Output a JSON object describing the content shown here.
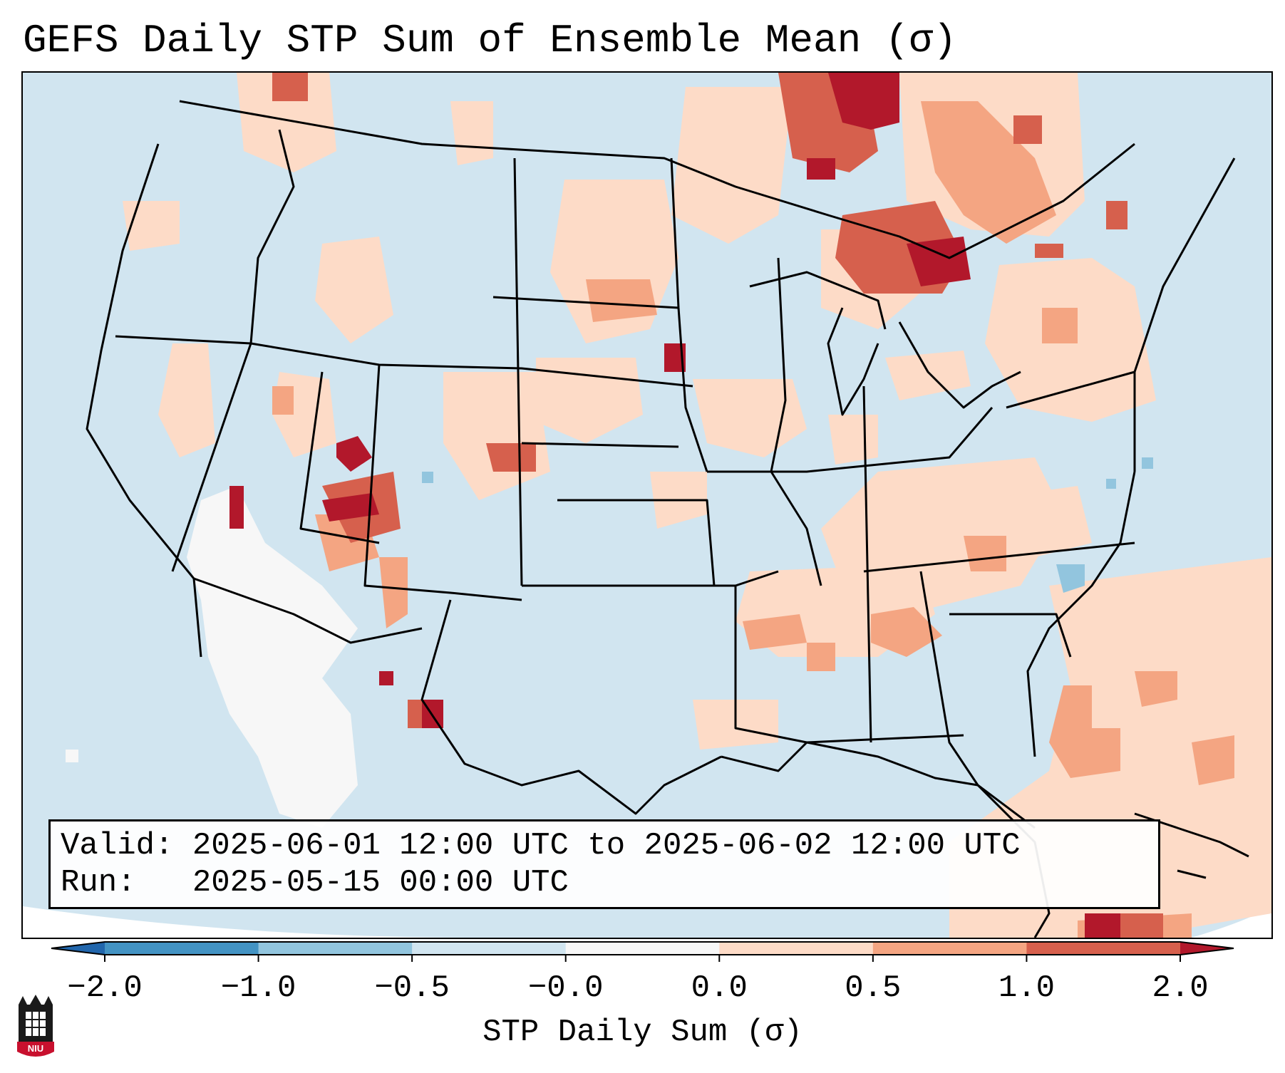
{
  "title": "GEFS Daily STP Sum of Ensemble Mean (σ)",
  "info": {
    "valid_label": "Valid:",
    "valid_value": "2025-06-01 12:00 UTC to 2025-06-02 12:00 UTC",
    "run_label": "Run:  ",
    "run_value": "2025-05-15 00:00 UTC"
  },
  "colorbar": {
    "label": "STP Daily Sum (σ)",
    "ticks": [
      "−2.0",
      "−1.0",
      "−0.5",
      "−0.0",
      "0.0",
      "0.5",
      "1.0",
      "2.0"
    ],
    "bins": [
      {
        "from": -2.0,
        "to": -1.0,
        "color": "#4393c3"
      },
      {
        "from": -1.0,
        "to": -0.5,
        "color": "#92c5de"
      },
      {
        "from": -0.5,
        "to": -0.0,
        "color": "#d1e5f0"
      },
      {
        "from": -0.0,
        "to": 0.0,
        "color": "#f7f7f7"
      },
      {
        "from": 0.0,
        "to": 0.5,
        "color": "#fddbc7"
      },
      {
        "from": 0.5,
        "to": 1.0,
        "color": "#f4a582"
      },
      {
        "from": 1.0,
        "to": 2.0,
        "color": "#d6604d"
      }
    ],
    "under_color": "#2166ac",
    "over_color": "#b2182b",
    "extend": "both"
  },
  "map": {
    "background_color": "#d1e5f0",
    "projection": "Lambert Conformal CONUS",
    "regions": [
      {
        "name": "Northern Ontario / Upper Great Lakes",
        "category": "> 2.0"
      },
      {
        "name": "Southwest Utah",
        "category": "> 2.0"
      },
      {
        "name": "Eastern Colorado",
        "category": "1.0 to 2.0"
      },
      {
        "name": "Southeast New Mexico",
        "category": "> 2.0"
      },
      {
        "name": "Tennessee Valley / Alabama",
        "category": "0.5 to 1.0"
      },
      {
        "name": "Western Atlantic",
        "category": "0.0 to 0.5"
      },
      {
        "name": "Southern California / Arizona / Mexico",
        "category": "-0.0 to 0.0"
      },
      {
        "name": "Off North Carolina coast",
        "category": "-1.0 to -0.5"
      }
    ]
  },
  "logo": {
    "text": "NIU",
    "color": "#c8102e"
  }
}
